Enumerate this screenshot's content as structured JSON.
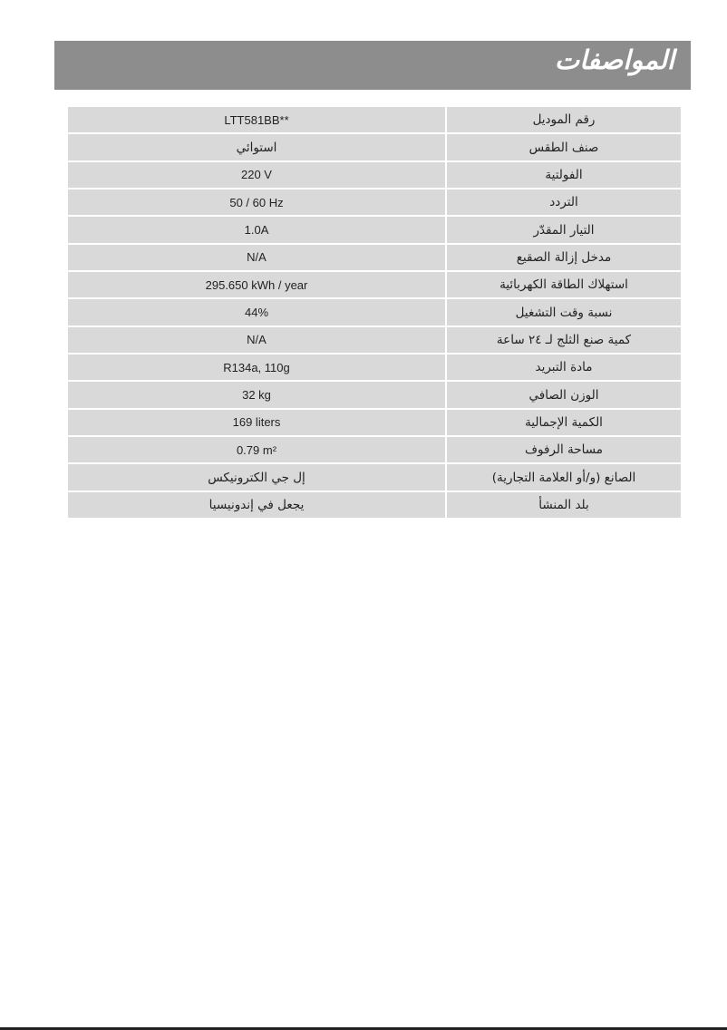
{
  "header": {
    "title": "المواصفات",
    "background": "#8e8d8d"
  },
  "specs": [
    {
      "label": "رقم الموديل",
      "value": "LTT581BB**"
    },
    {
      "label": "صنف الطقس",
      "value": "استوائي",
      "arabic": true
    },
    {
      "label": "الفولتية",
      "value": "220 V"
    },
    {
      "label": "التردد",
      "value": "50 / 60 Hz"
    },
    {
      "label": "التيار المقدّر",
      "value": "1.0A"
    },
    {
      "label": "مدخل إزالة الصقيع",
      "value": "N/A"
    },
    {
      "label": "استهلاك الطاقة الكهربائية",
      "value": "295.650 kWh / year"
    },
    {
      "label": "نسبة وقت التشغيل",
      "value": "44%"
    },
    {
      "label": "كمية صنع الثلج لـ ٢٤ ساعة",
      "value": "N/A"
    },
    {
      "label": "مادة التبريد",
      "value": "R134a, 110g"
    },
    {
      "label": "الوزن الصافي",
      "value": "32 kg"
    },
    {
      "label": "الكمية الإجمالية",
      "value": "169 liters"
    },
    {
      "label": "مساحة الرفوف",
      "value": "0.79 m²"
    },
    {
      "label": "الصانع (و/أو العلامة التجارية)",
      "value": "إل جي الكترونيكس",
      "arabic": true
    },
    {
      "label": "بلد المنشأ",
      "value": "يجعل في إندونيسيا",
      "arabic": true
    }
  ]
}
